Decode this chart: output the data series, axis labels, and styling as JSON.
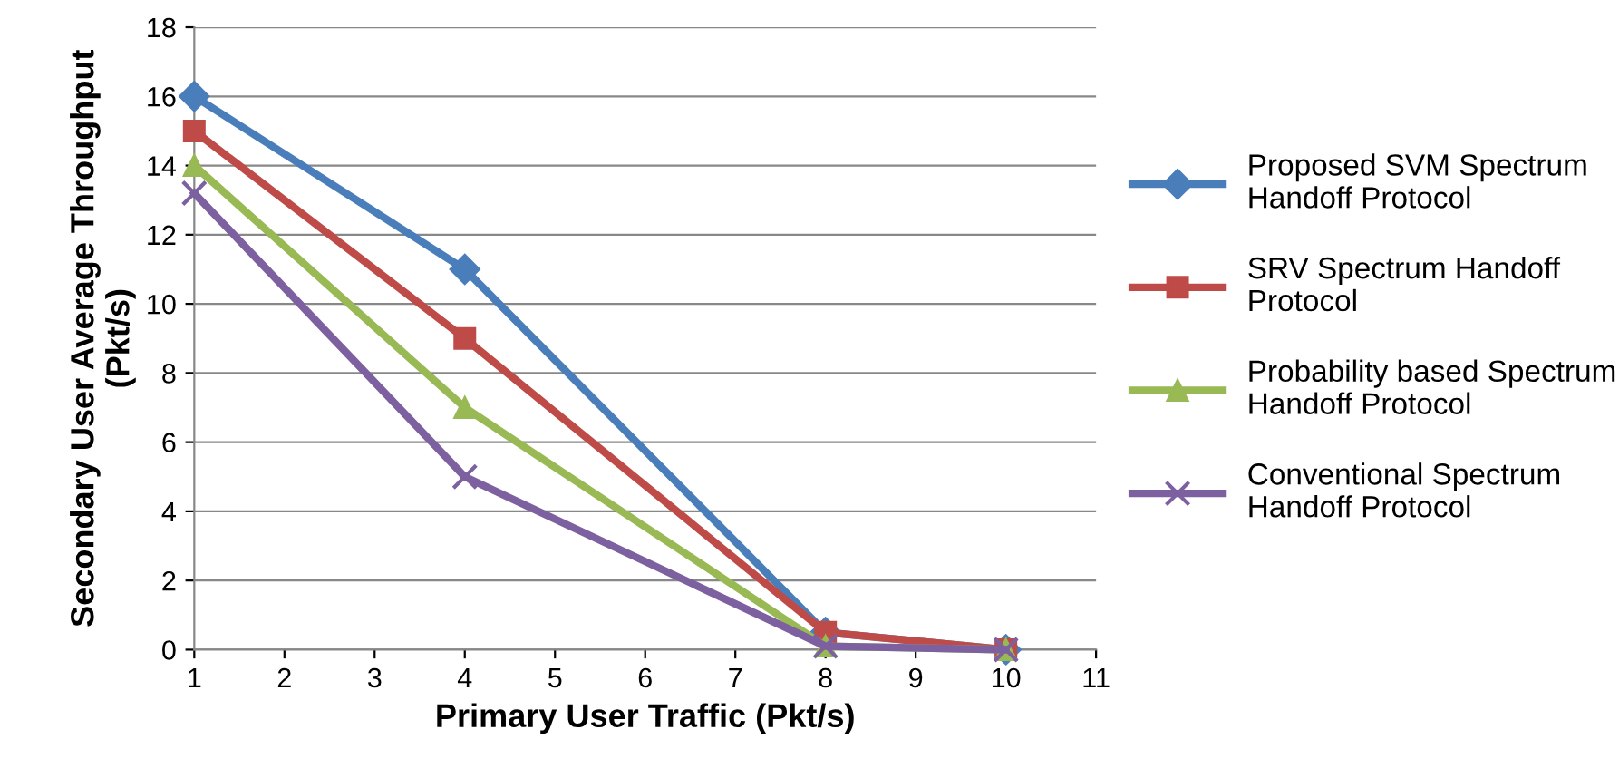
{
  "chart_data": {
    "type": "line",
    "xlabel": "Primary User Traffic (Pkt/s)",
    "ylabel": "Secondary User Average Throughput\n(Pkt/s)",
    "x": [
      1,
      4,
      8,
      10
    ],
    "series": [
      {
        "name": "Proposed SVM Spectrum Handoff Protocol",
        "color": "#4a7ebb",
        "marker": "diamond",
        "values": [
          16,
          11,
          0.5,
          0
        ]
      },
      {
        "name": "SRV Spectrum Handoff Protocol",
        "color": "#be4b48",
        "marker": "square",
        "values": [
          15,
          9,
          0.5,
          0
        ]
      },
      {
        "name": "Probability based Spectrum Handoff Protocol",
        "color": "#98b954",
        "marker": "triangle",
        "values": [
          14,
          7,
          0.1,
          0
        ]
      },
      {
        "name": "Conventional Spectrum Handoff Protocol",
        "color": "#7d60a0",
        "marker": "cross",
        "values": [
          13.2,
          5,
          0.1,
          0
        ]
      }
    ],
    "xlim": [
      1,
      11
    ],
    "xticks": [
      1,
      2,
      3,
      4,
      5,
      6,
      7,
      8,
      9,
      10,
      11
    ],
    "ylim": [
      0,
      18
    ],
    "yticks": [
      0,
      2,
      4,
      6,
      8,
      10,
      12,
      14,
      16,
      18
    ],
    "grid": "y",
    "legend": "right",
    "line_style": "solid"
  }
}
